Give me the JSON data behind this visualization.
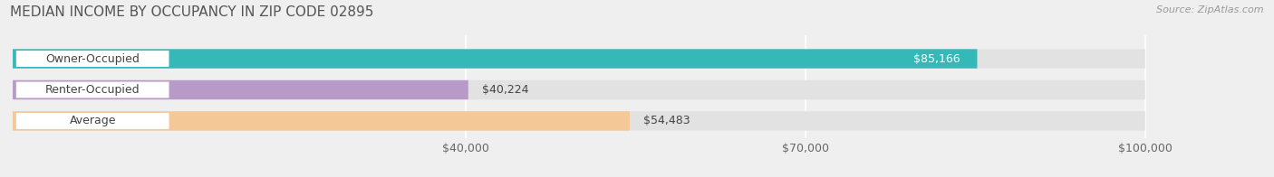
{
  "title": "MEDIAN INCOME BY OCCUPANCY IN ZIP CODE 02895",
  "source": "Source: ZipAtlas.com",
  "categories": [
    "Owner-Occupied",
    "Renter-Occupied",
    "Average"
  ],
  "values": [
    85166,
    40224,
    54483
  ],
  "bar_colors": [
    "#35b8b8",
    "#b89ac8",
    "#f5c898"
  ],
  "value_labels": [
    "$85,166",
    "$40,224",
    "$54,483"
  ],
  "value_label_inside": [
    true,
    false,
    false
  ],
  "xlim_max": 108000,
  "xaxis_max": 100000,
  "xticks": [
    40000,
    70000,
    100000
  ],
  "xtick_labels": [
    "$40,000",
    "$70,000",
    "$100,000"
  ],
  "background_color": "#efefef",
  "bar_bg_color": "#e2e2e2",
  "title_fontsize": 11,
  "source_fontsize": 8,
  "cat_fontsize": 9,
  "value_fontsize": 9,
  "tick_fontsize": 9
}
